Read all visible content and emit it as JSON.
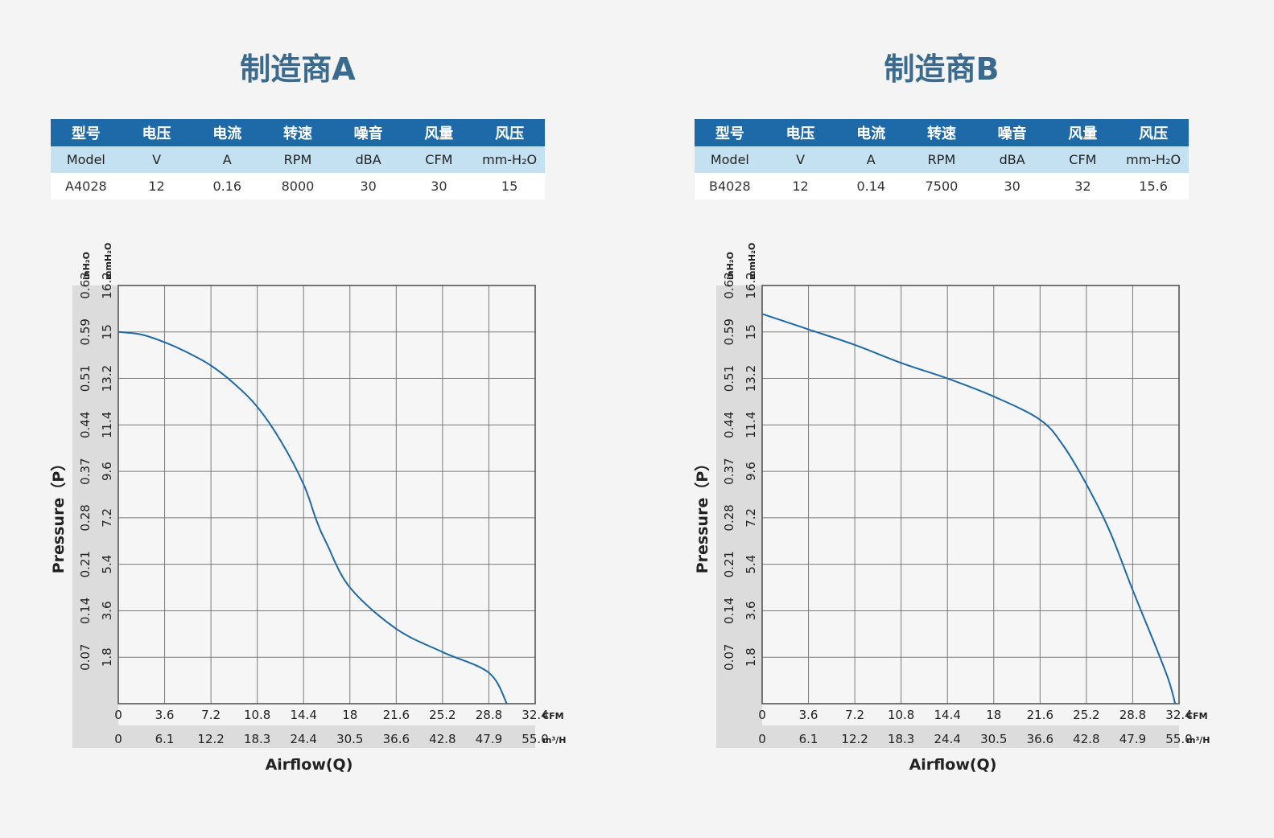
{
  "table_headers_cn": [
    "型号",
    "电压",
    "电流",
    "转速",
    "噪音",
    "风量",
    "风压"
  ],
  "table_headers_en": [
    "Model",
    "V",
    "A",
    "RPM",
    "dBA",
    "CFM",
    "mm-H₂O"
  ],
  "panels": [
    {
      "title": "制造商A",
      "row": [
        "A4028",
        "12",
        "0.16",
        "8000",
        "30",
        "30",
        "15"
      ]
    },
    {
      "title": "制造商B",
      "row": [
        "B4028",
        "12",
        "0.14",
        "7500",
        "30",
        "32",
        "15.6"
      ]
    }
  ],
  "chart_data": [
    {
      "type": "line",
      "xlabel": "Airflow(Q)",
      "ylabel": "Pressure（P）",
      "x_unit": "CFM",
      "x2_unit": "m³/H",
      "y_unit": "mmH₂O",
      "y2_unit": "inH₂O",
      "xlim": [
        0,
        32.4
      ],
      "ylim": [
        0,
        16.2
      ],
      "grid": true,
      "x_ticks": [
        "0",
        "3.6",
        "7.2",
        "10.8",
        "14.4",
        "18",
        "21.6",
        "25.2",
        "28.8",
        "32.4"
      ],
      "x2_ticks": [
        "0",
        "6.1",
        "12.2",
        "18.3",
        "24.4",
        "30.5",
        "36.6",
        "42.8",
        "47.9",
        "55.0"
      ],
      "y_ticks": [
        "",
        "1.8",
        "3.6",
        "5.4",
        "7.2",
        "9.6",
        "11.4",
        "13.2",
        "15",
        "16.2"
      ],
      "y2_ticks": [
        "",
        "0.07",
        "0.14",
        "0.21",
        "0.28",
        "0.37",
        "0.44",
        "0.51",
        "0.59",
        "0.63"
      ],
      "series": [
        {
          "points": [
            [
              0,
              14.4
            ],
            [
              1.8,
              14.3
            ],
            [
              3.6,
              14.0
            ],
            [
              5.4,
              13.6
            ],
            [
              7.2,
              13.1
            ],
            [
              9.0,
              12.4
            ],
            [
              10.8,
              11.5
            ],
            [
              12.6,
              10.2
            ],
            [
              14.4,
              8.5
            ],
            [
              15.4,
              7.1
            ],
            [
              16.2,
              6.2
            ],
            [
              18.0,
              4.5
            ],
            [
              21.6,
              2.9
            ],
            [
              25.2,
              2.0
            ],
            [
              28.8,
              1.2
            ],
            [
              30.2,
              0.0
            ]
          ]
        }
      ]
    },
    {
      "type": "line",
      "xlabel": "Airflow(Q)",
      "ylabel": "Pressure（P）",
      "x_unit": "CFM",
      "x2_unit": "m³/H",
      "y_unit": "mmH₂O",
      "y2_unit": "inH₂O",
      "xlim": [
        0,
        32.4
      ],
      "ylim": [
        0,
        16.2
      ],
      "grid": true,
      "x_ticks": [
        "0",
        "3.6",
        "7.2",
        "10.8",
        "14.4",
        "18",
        "21.6",
        "25.2",
        "28.8",
        "32.4"
      ],
      "x2_ticks": [
        "0",
        "6.1",
        "12.2",
        "18.3",
        "24.4",
        "30.5",
        "36.6",
        "42.8",
        "47.9",
        "55.0"
      ],
      "y_ticks": [
        "",
        "1.8",
        "3.6",
        "5.4",
        "7.2",
        "9.6",
        "11.4",
        "13.2",
        "15",
        "16.2"
      ],
      "y2_ticks": [
        "",
        "0.07",
        "0.14",
        "0.21",
        "0.28",
        "0.37",
        "0.44",
        "0.51",
        "0.59",
        "0.63"
      ],
      "series": [
        {
          "points": [
            [
              0,
              15.1
            ],
            [
              3.6,
              14.5
            ],
            [
              7.2,
              13.9
            ],
            [
              10.8,
              13.2
            ],
            [
              14.4,
              12.6
            ],
            [
              18.0,
              11.9
            ],
            [
              21.6,
              11.0
            ],
            [
              23.4,
              10.0
            ],
            [
              25.2,
              8.5
            ],
            [
              27.0,
              6.7
            ],
            [
              28.8,
              4.4
            ],
            [
              30.6,
              2.2
            ],
            [
              31.6,
              0.9
            ],
            [
              32.1,
              0.0
            ]
          ]
        }
      ]
    }
  ]
}
